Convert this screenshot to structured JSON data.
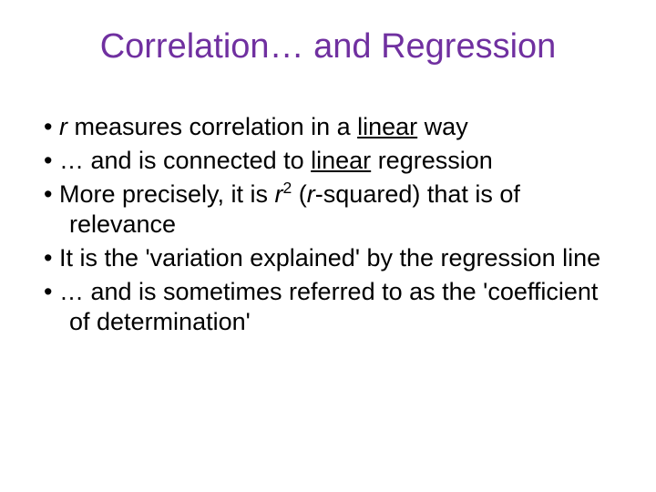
{
  "title": {
    "text": "Correlation… and Regression",
    "color": "#7030a0"
  },
  "bullets": [
    {
      "html": "<span class=\"italic\">r</span> measures correlation in a <span class=\"underline\">linear</span> way"
    },
    {
      "html": "… and is connected to <span class=\"underline\">linear</span> regression"
    },
    {
      "html": "More precisely, it is <span class=\"italic\">r</span><sup>2</sup> (<span class=\"italic\">r</span>-squared) that is of relevance"
    },
    {
      "html": "It is the 'variation explained' by the regression line"
    },
    {
      "html": "… and is sometimes referred to as the 'coefficient of determination'"
    }
  ],
  "text_color": "#000000",
  "background_color": "#ffffff"
}
